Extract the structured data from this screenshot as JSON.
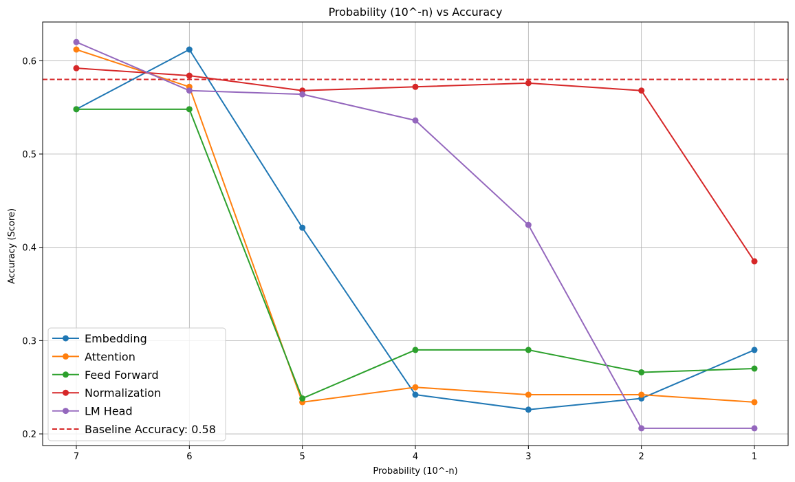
{
  "chart_data": {
    "type": "line",
    "title": "Probability (10^-n) vs Accuracy",
    "xlabel": "Probability (10^-n)",
    "ylabel": "Accuracy (Score)",
    "categories": [
      "7",
      "6",
      "5",
      "4",
      "3",
      "2",
      "1"
    ],
    "yticks": [
      "0.2",
      "0.3",
      "0.4",
      "0.5",
      "0.6"
    ],
    "ylim": [
      0.1875,
      0.6415
    ],
    "grid": true,
    "legend_position": "lower-left",
    "series": [
      {
        "name": "Embedding",
        "color": "#1f77b4",
        "values": [
          0.548,
          0.612,
          0.421,
          0.242,
          0.226,
          0.238,
          0.29
        ]
      },
      {
        "name": "Attention",
        "color": "#ff7f0e",
        "values": [
          0.612,
          0.572,
          0.234,
          0.25,
          0.242,
          0.242,
          0.234
        ]
      },
      {
        "name": "Feed Forward",
        "color": "#2ca02c",
        "values": [
          0.548,
          0.548,
          0.238,
          0.29,
          0.29,
          0.266,
          0.27
        ]
      },
      {
        "name": "Normalization",
        "color": "#d62728",
        "values": [
          0.592,
          0.584,
          0.568,
          0.572,
          0.576,
          0.568,
          0.385
        ]
      },
      {
        "name": "LM Head",
        "color": "#9467bd",
        "values": [
          0.62,
          0.568,
          0.564,
          0.536,
          0.424,
          0.206,
          0.206
        ]
      }
    ],
    "baseline": {
      "label": "Baseline Accuracy: 0.58",
      "value": 0.58,
      "color": "#d62728",
      "style": "dashed"
    }
  }
}
